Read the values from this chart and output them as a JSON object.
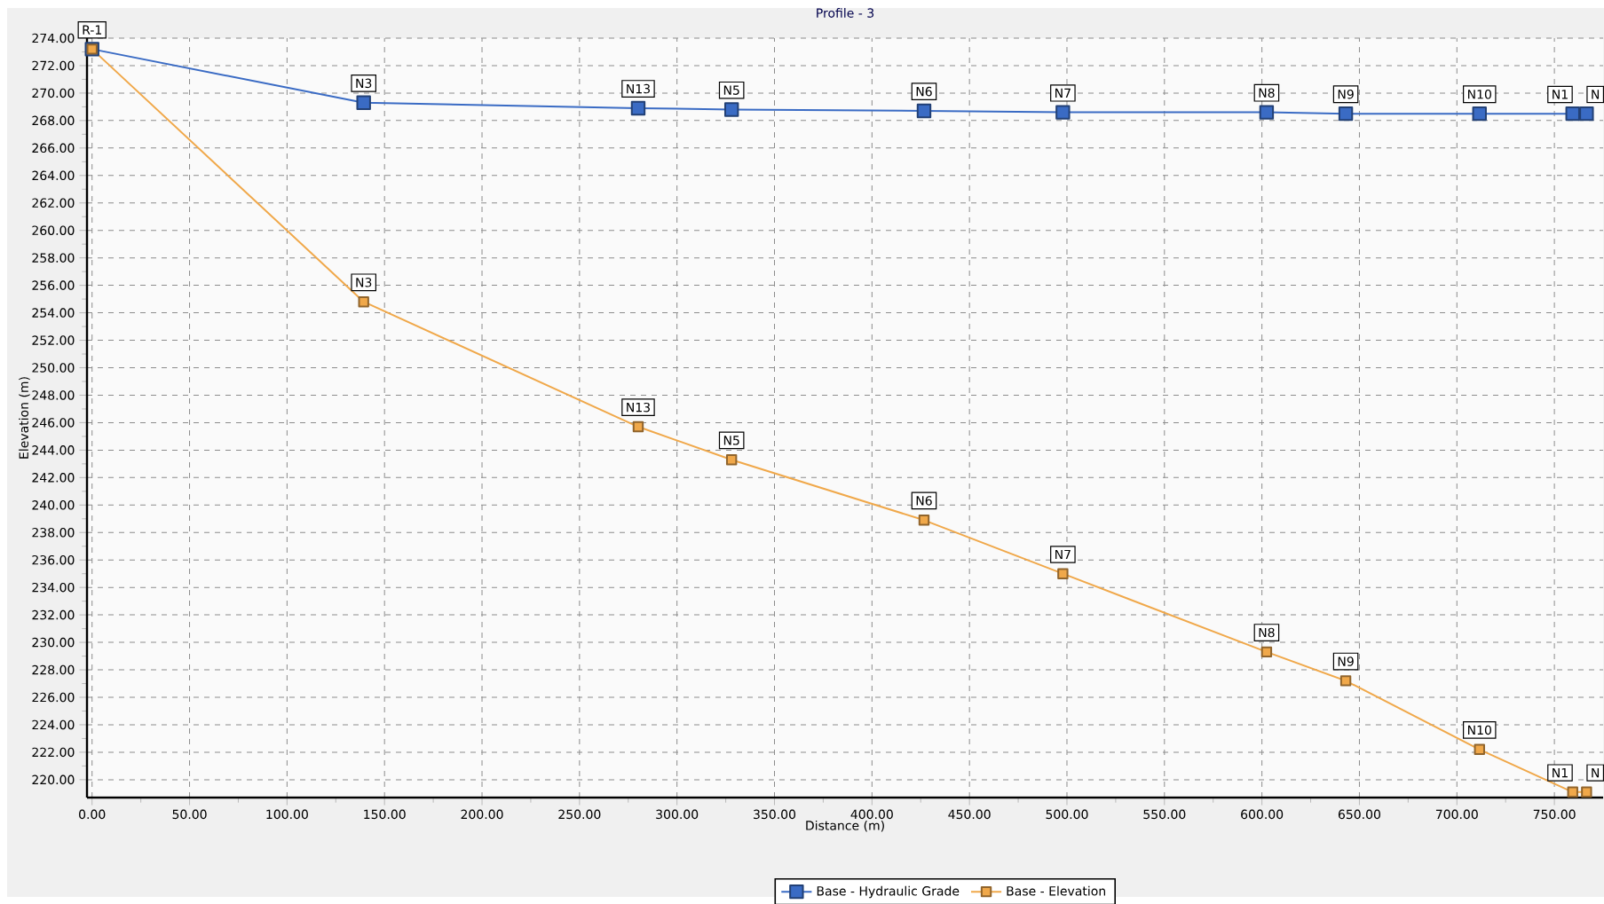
{
  "chart_data": {
    "type": "line",
    "title": "Profile - 3",
    "xlabel": "Distance (m)",
    "ylabel": "Elevation (m)",
    "x": [
      0,
      139.3,
      280.1,
      328,
      426.7,
      497.9,
      602.4,
      643,
      711.6,
      759.4,
      766.5
    ],
    "series": [
      {
        "name": "Base - Hydraulic Grade",
        "color": "#3a6bc4",
        "values": [
          273.2,
          269.3,
          268.9,
          268.8,
          268.7,
          268.6,
          268.6,
          268.5,
          268.5,
          268.5,
          268.5
        ]
      },
      {
        "name": "Base - Elevation",
        "color": "#f0a84a",
        "values": [
          273.2,
          254.8,
          245.7,
          243.3,
          238.9,
          235.0,
          229.3,
          227.2,
          222.2,
          219.1,
          219.1
        ]
      }
    ],
    "xlim": [
      -2.6,
      775
    ],
    "ylim": [
      218.7,
      274
    ],
    "xticks": [
      {
        "value": 0,
        "label": "0.00"
      },
      {
        "value": 50,
        "label": "50.00"
      },
      {
        "value": 100,
        "label": "100.00"
      },
      {
        "value": 150,
        "label": "150.00"
      },
      {
        "value": 200,
        "label": "200.00"
      },
      {
        "value": 250,
        "label": "250.00"
      },
      {
        "value": 300,
        "label": "300.00"
      },
      {
        "value": 350,
        "label": "350.00"
      },
      {
        "value": 400,
        "label": "400.00"
      },
      {
        "value": 450,
        "label": "450.00"
      },
      {
        "value": 500,
        "label": "500.00"
      },
      {
        "value": 550,
        "label": "550.00"
      },
      {
        "value": 600,
        "label": "600.00"
      },
      {
        "value": 650,
        "label": "650.00"
      },
      {
        "value": 700,
        "label": "700.00"
      },
      {
        "value": 750,
        "label": "750.00"
      }
    ],
    "yticks": [
      {
        "value": 220,
        "label": "220.00"
      },
      {
        "value": 222,
        "label": "222.00"
      },
      {
        "value": 224,
        "label": "224.00"
      },
      {
        "value": 226,
        "label": "226.00"
      },
      {
        "value": 228,
        "label": "228.00"
      },
      {
        "value": 230,
        "label": "230.00"
      },
      {
        "value": 232,
        "label": "232.00"
      },
      {
        "value": 234,
        "label": "234.00"
      },
      {
        "value": 236,
        "label": "236.00"
      },
      {
        "value": 238,
        "label": "238.00"
      },
      {
        "value": 240,
        "label": "240.00"
      },
      {
        "value": 242,
        "label": "242.00"
      },
      {
        "value": 244,
        "label": "244.00"
      },
      {
        "value": 246,
        "label": "246.00"
      },
      {
        "value": 248,
        "label": "248.00"
      },
      {
        "value": 250,
        "label": "250.00"
      },
      {
        "value": 252,
        "label": "252.00"
      },
      {
        "value": 254,
        "label": "254.00"
      },
      {
        "value": 256,
        "label": "256.00"
      },
      {
        "value": 258,
        "label": "258.00"
      },
      {
        "value": 260,
        "label": "260.00"
      },
      {
        "value": 262,
        "label": "262.00"
      },
      {
        "value": 264,
        "label": "264.00"
      },
      {
        "value": 266,
        "label": "266.00"
      },
      {
        "value": 268,
        "label": "268.00"
      },
      {
        "value": 270,
        "label": "270.00"
      },
      {
        "value": 272,
        "label": "272.00"
      },
      {
        "value": 274,
        "label": "274.00"
      }
    ],
    "grid": true,
    "legend": "bottom",
    "marker": "square",
    "line_style": "solid",
    "annotations": [
      {
        "text": "R-1",
        "x": 0,
        "y": 273.2
      },
      {
        "text": "N3",
        "x": 139.3,
        "y": 269.3
      },
      {
        "text": "N13",
        "x": 280.1,
        "y": 268.9
      },
      {
        "text": "N5",
        "x": 328,
        "y": 268.8
      },
      {
        "text": "N6",
        "x": 426.7,
        "y": 268.7
      },
      {
        "text": "N7",
        "x": 497.9,
        "y": 268.6
      },
      {
        "text": "N8",
        "x": 602.4,
        "y": 268.6
      },
      {
        "text": "N9",
        "x": 643,
        "y": 268.5
      },
      {
        "text": "N10",
        "x": 711.6,
        "y": 268.5
      },
      {
        "text": "N1",
        "x": 759.4,
        "y": 268.5
      },
      {
        "text": "N",
        "x": 766.5,
        "y": 268.5
      },
      {
        "text": "N3",
        "x": 139.3,
        "y": 254.8
      },
      {
        "text": "N13",
        "x": 280.1,
        "y": 245.7
      },
      {
        "text": "N5",
        "x": 328,
        "y": 243.3
      },
      {
        "text": "N6",
        "x": 426.7,
        "y": 238.9
      },
      {
        "text": "N7",
        "x": 497.9,
        "y": 235.0
      },
      {
        "text": "N8",
        "x": 602.4,
        "y": 229.3
      },
      {
        "text": "N9",
        "x": 643,
        "y": 227.2
      },
      {
        "text": "N10",
        "x": 711.6,
        "y": 222.2
      },
      {
        "text": "N1",
        "x": 759.4,
        "y": 219.1
      },
      {
        "text": "N",
        "x": 766.5,
        "y": 219.1
      }
    ]
  }
}
